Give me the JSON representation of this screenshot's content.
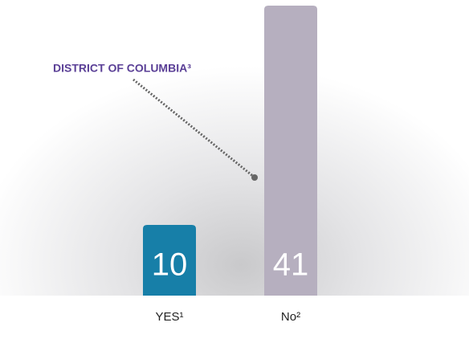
{
  "chart_data": {
    "type": "bar",
    "categories": [
      "YES¹",
      "No²"
    ],
    "values": [
      10,
      41
    ],
    "colors": [
      "#177fa8",
      "#b6afbf"
    ],
    "annotation": "DISTRICT OF COLUMBIA³",
    "annotation_color": "#5a3f96"
  }
}
